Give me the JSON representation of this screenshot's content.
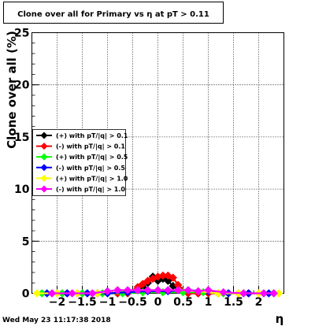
{
  "title": "Clone  over all for Primary vs   η at pT > 0.11",
  "timestamp": "Wed May 23 11:17:38 2018",
  "chart_data": {
    "type": "scatter",
    "title": "Clone  over all for Primary vs   η at pT > 0.11",
    "xlabel": "η",
    "ylabel": "Clone  over all (%)",
    "xlim": [
      -2.5,
      2.5
    ],
    "ylim": [
      0,
      25
    ],
    "x_ticks": [
      -2,
      -1.5,
      -1,
      -0.5,
      0,
      0.5,
      1,
      1.5,
      2
    ],
    "x_tick_labels": [
      "−2",
      "−1.5",
      "−1",
      "−0.5",
      "0",
      "0.5",
      "1",
      "1.5",
      "2"
    ],
    "y_ticks": [
      0,
      5,
      10,
      15,
      20,
      25
    ],
    "y_tick_labels": [
      "0",
      "5",
      "10",
      "15",
      "20",
      "25"
    ],
    "grid": true,
    "legend_position": "middle-left",
    "series": [
      {
        "name": "(+) with pT/|q| > 0.1",
        "color": "#000000",
        "points": [
          [
            -2.0,
            0
          ],
          [
            -1.8,
            0
          ],
          [
            -1.6,
            0
          ],
          [
            -1.4,
            0
          ],
          [
            -1.2,
            0
          ],
          [
            -1.0,
            0
          ],
          [
            -0.8,
            0
          ],
          [
            -0.6,
            0
          ],
          [
            -0.4,
            0.3
          ],
          [
            -0.3,
            0.6
          ],
          [
            -0.2,
            1.0
          ],
          [
            -0.1,
            1.6
          ],
          [
            0.0,
            1.2
          ],
          [
            0.1,
            1.4
          ],
          [
            0.2,
            1.2
          ],
          [
            0.3,
            0.7
          ],
          [
            0.4,
            0.3
          ],
          [
            0.6,
            0
          ],
          [
            0.8,
            0
          ],
          [
            1.0,
            0
          ],
          [
            1.2,
            0
          ],
          [
            1.4,
            0
          ],
          [
            1.6,
            0
          ],
          [
            1.8,
            0
          ],
          [
            2.0,
            0
          ]
        ]
      },
      {
        "name": "(-) with pT/|q| > 0.1",
        "color": "#ff0000",
        "points": [
          [
            -2.0,
            0
          ],
          [
            -1.8,
            0
          ],
          [
            -1.6,
            0
          ],
          [
            -1.4,
            0
          ],
          [
            -1.2,
            0
          ],
          [
            -1.0,
            0
          ],
          [
            -0.8,
            0
          ],
          [
            -0.6,
            0
          ],
          [
            -0.4,
            0.6
          ],
          [
            -0.3,
            0.9
          ],
          [
            -0.2,
            1.2
          ],
          [
            -0.1,
            1.4
          ],
          [
            0.0,
            1.6
          ],
          [
            0.1,
            1.7
          ],
          [
            0.2,
            1.7
          ],
          [
            0.3,
            1.5
          ],
          [
            0.4,
            0.8
          ],
          [
            0.6,
            0
          ],
          [
            0.8,
            0
          ],
          [
            1.0,
            0
          ],
          [
            1.2,
            0
          ],
          [
            1.4,
            0
          ],
          [
            1.6,
            0
          ],
          [
            1.8,
            0
          ],
          [
            2.0,
            0
          ]
        ]
      },
      {
        "name": "(+) with pT/|q| > 0.5",
        "color": "#00ff00",
        "points": [
          [
            -2.3,
            0
          ],
          [
            -2.1,
            0
          ],
          [
            -1.9,
            0
          ],
          [
            -1.5,
            0
          ],
          [
            -1.1,
            0
          ],
          [
            -0.7,
            0
          ],
          [
            -0.3,
            0.1
          ],
          [
            0.1,
            0.1
          ],
          [
            0.5,
            0.1
          ],
          [
            0.9,
            0.1
          ],
          [
            1.3,
            0
          ],
          [
            1.7,
            0
          ],
          [
            2.1,
            0
          ],
          [
            2.3,
            0
          ]
        ]
      },
      {
        "name": "(-) with pT/|q| > 0.5",
        "color": "#0000ff",
        "points": [
          [
            -2.2,
            0
          ],
          [
            -1.8,
            0
          ],
          [
            -1.4,
            0
          ],
          [
            -1.0,
            0
          ],
          [
            -0.6,
            0.1
          ],
          [
            -0.2,
            0.2
          ],
          [
            0.2,
            0.2
          ],
          [
            0.6,
            0.3
          ],
          [
            1.0,
            0.2
          ],
          [
            1.4,
            0
          ],
          [
            1.8,
            0
          ],
          [
            2.2,
            0
          ]
        ]
      },
      {
        "name": "(+) with pT/|q| > 1.0",
        "color": "#ffff00",
        "points": [
          [
            -2.4,
            0
          ],
          [
            -2.0,
            0
          ],
          [
            -1.6,
            0
          ],
          [
            -1.2,
            0
          ],
          [
            -0.8,
            0.3
          ],
          [
            -0.4,
            0.3
          ],
          [
            0.0,
            0.3
          ],
          [
            0.4,
            0.3
          ],
          [
            0.8,
            0.2
          ],
          [
            1.2,
            0
          ],
          [
            1.6,
            0
          ],
          [
            2.0,
            0
          ],
          [
            2.4,
            0
          ]
        ]
      },
      {
        "name": "(-) with pT/|q| > 1.0",
        "color": "#ff00ff",
        "points": [
          [
            -2.1,
            0
          ],
          [
            -1.7,
            0
          ],
          [
            -1.3,
            0
          ],
          [
            -1.0,
            0.2
          ],
          [
            -0.8,
            0.3
          ],
          [
            -0.6,
            0.3
          ],
          [
            -0.4,
            0.3
          ],
          [
            -0.2,
            0.3
          ],
          [
            0.0,
            0.3
          ],
          [
            0.2,
            0.3
          ],
          [
            0.4,
            0.3
          ],
          [
            0.6,
            0.3
          ],
          [
            0.8,
            0.2
          ],
          [
            1.0,
            0.3
          ],
          [
            1.3,
            0.1
          ],
          [
            1.7,
            0
          ],
          [
            2.1,
            0
          ],
          [
            2.3,
            0
          ]
        ]
      }
    ]
  }
}
